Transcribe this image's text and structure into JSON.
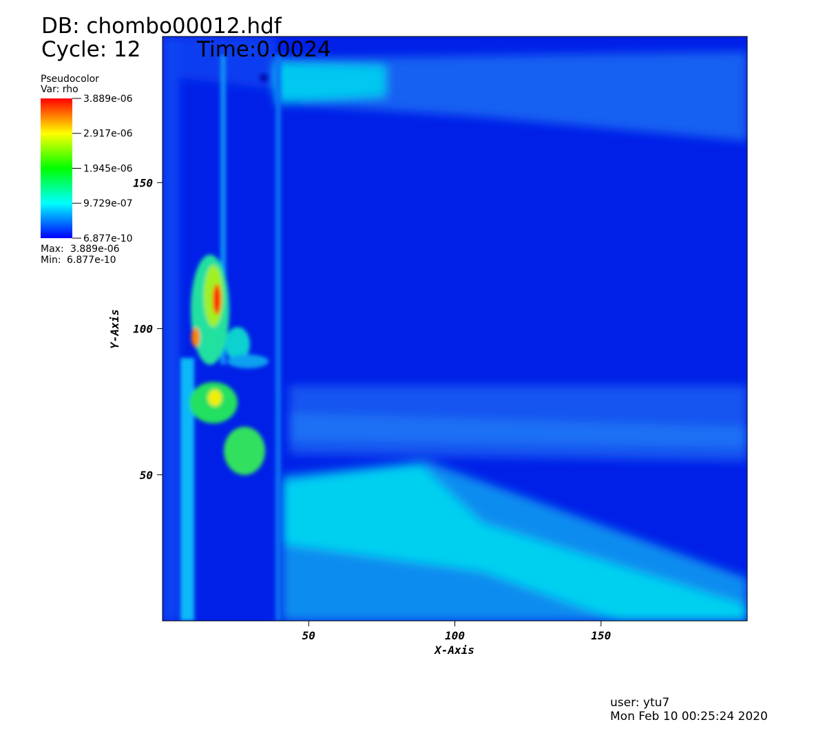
{
  "chart_data": {
    "type": "pseudocolor",
    "db_label": "DB: chombo00012.hdf",
    "cycle_label": "Cycle: 12",
    "time_label": "Time:0.0024",
    "legend_title": "Pseudocolor",
    "legend_var": "Var: rho",
    "max_label": "Max:",
    "max": {
      "value": 3.889e-06,
      "label": "3.889e-06"
    },
    "min_label": "Min:",
    "min": {
      "value": 6.877e-10,
      "label": "6.877e-10"
    },
    "colorbar_ticks": [
      {
        "value": 3.889e-06,
        "label": "3.889e-06"
      },
      {
        "value": 2.917e-06,
        "label": "2.917e-06"
      },
      {
        "value": 1.945e-06,
        "label": "1.945e-06"
      },
      {
        "value": 9.729e-07,
        "label": "9.729e-07"
      },
      {
        "value": 6.877e-10,
        "label": "6.877e-10"
      }
    ],
    "xlabel": "X-Axis",
    "ylabel": "Y-Axis",
    "xlim": [
      0,
      200
    ],
    "ylim": [
      0,
      200
    ],
    "xticks": [
      50,
      100,
      150
    ],
    "yticks": [
      50,
      100,
      150
    ],
    "user_label": "user: ytu7",
    "date_label": "Mon Feb 10 00:25:24 2020"
  }
}
